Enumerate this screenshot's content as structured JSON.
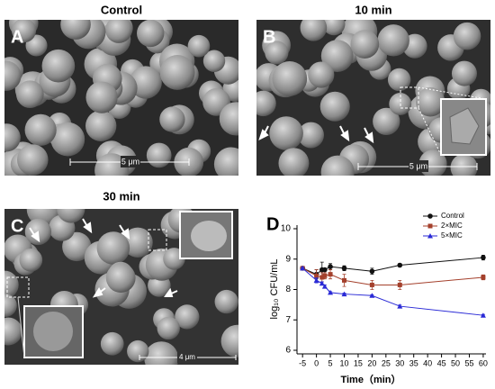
{
  "panels": [
    {
      "letter": "A",
      "title": "Control",
      "scale_bar": "5 μm"
    },
    {
      "letter": "B",
      "title": "10 min",
      "scale_bar": "5 μm"
    },
    {
      "letter": "C",
      "title": "30 min",
      "scale_bar": "4 μm"
    },
    {
      "letter": "D"
    }
  ],
  "chart_data": {
    "type": "line",
    "x_label": "Time（min）",
    "y_label": "log₁₀ CFU/mL",
    "x": [
      -5,
      0,
      2,
      3,
      5,
      10,
      20,
      30,
      60
    ],
    "series": [
      {
        "name": "Control",
        "color": "#111111",
        "marker": "circle",
        "values": [
          8.7,
          8.5,
          8.65,
          8.65,
          8.75,
          8.7,
          8.6,
          8.8,
          9.05
        ],
        "errors": [
          0.05,
          0.15,
          0.25,
          0.05,
          0.1,
          0.08,
          0.1,
          0.05,
          0.08
        ]
      },
      {
        "name": "2×MIC",
        "color": "#a4402c",
        "marker": "square",
        "values": [
          8.7,
          8.45,
          8.4,
          8.45,
          8.5,
          8.3,
          8.15,
          8.15,
          8.4
        ],
        "errors": [
          0.05,
          0.2,
          0.15,
          0.1,
          0.15,
          0.2,
          0.15,
          0.15,
          0.08
        ]
      },
      {
        "name": "5×MIC",
        "color": "#2a2ad6",
        "marker": "triangle",
        "values": [
          8.7,
          8.3,
          8.2,
          8.1,
          7.9,
          7.85,
          7.8,
          7.45,
          7.15
        ],
        "errors": [
          0.03,
          0.08,
          0.05,
          0.05,
          0.03,
          0.03,
          0.03,
          0.04,
          0.03
        ]
      }
    ],
    "xlim": [
      -7,
      61
    ],
    "xticks": [
      -5,
      0,
      5,
      10,
      15,
      20,
      25,
      30,
      35,
      40,
      45,
      50,
      55,
      60
    ],
    "ylim": [
      6,
      10
    ],
    "yticks": [
      6,
      7,
      8,
      9,
      10
    ],
    "legend": "top-right"
  }
}
